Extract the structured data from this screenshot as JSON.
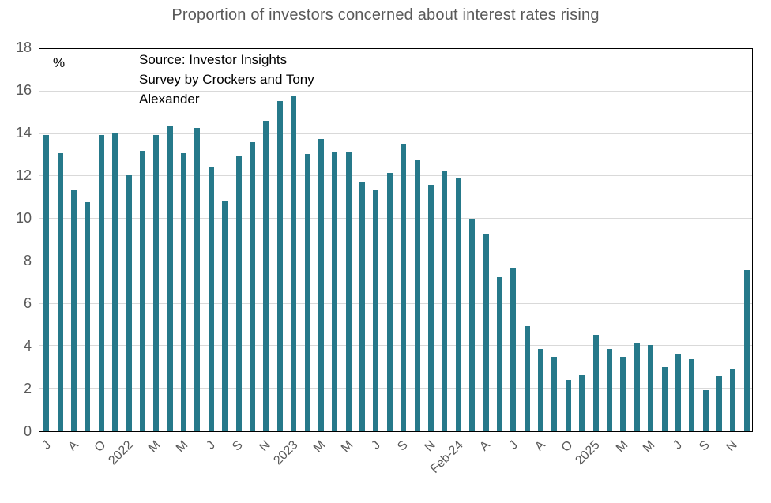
{
  "chart_data": {
    "type": "bar",
    "title": "Proportion of investors concerned about interest rates rising",
    "unit_label": "%",
    "annotation_lines": [
      "Source: Investor Insights",
      "Survey by Crockers and Tony",
      "Alexander"
    ],
    "values": [
      13.95,
      13.1,
      11.35,
      10.8,
      13.95,
      14.05,
      12.1,
      13.2,
      13.95,
      14.4,
      13.1,
      14.3,
      12.45,
      10.85,
      12.95,
      13.6,
      14.6,
      15.55,
      15.8,
      13.05,
      13.75,
      13.15,
      13.15,
      11.75,
      11.35,
      12.15,
      13.55,
      12.75,
      11.6,
      12.25,
      11.95,
      10.0,
      9.3,
      7.25,
      7.65,
      4.95,
      3.85,
      3.5,
      2.4,
      2.65,
      4.55,
      3.85,
      3.5,
      4.15,
      4.05,
      3.0,
      3.65,
      3.4,
      1.95,
      2.6,
      2.95,
      7.6
    ],
    "x_tick_labels": [
      "J",
      "A",
      "O",
      "2022",
      "M",
      "M",
      "J",
      "S",
      "N",
      "2023",
      "M",
      "M",
      "J",
      "S",
      "N",
      "Feb-24",
      "A",
      "J",
      "A",
      "O",
      "2025",
      "M",
      "M",
      "J",
      "S",
      "N"
    ],
    "x_tick_every": 2,
    "y_ticks": [
      0,
      2,
      4,
      6,
      8,
      10,
      12,
      14,
      16,
      18
    ],
    "ylim": [
      0,
      18
    ],
    "grid": "horizontal",
    "legend": "none",
    "colors": {
      "bar": "#26798a",
      "gridline": "#d9d9d9",
      "plot_border": "#000000",
      "title_text": "#595959",
      "axis_text": "#595959",
      "annotation_text": "#000000"
    }
  }
}
